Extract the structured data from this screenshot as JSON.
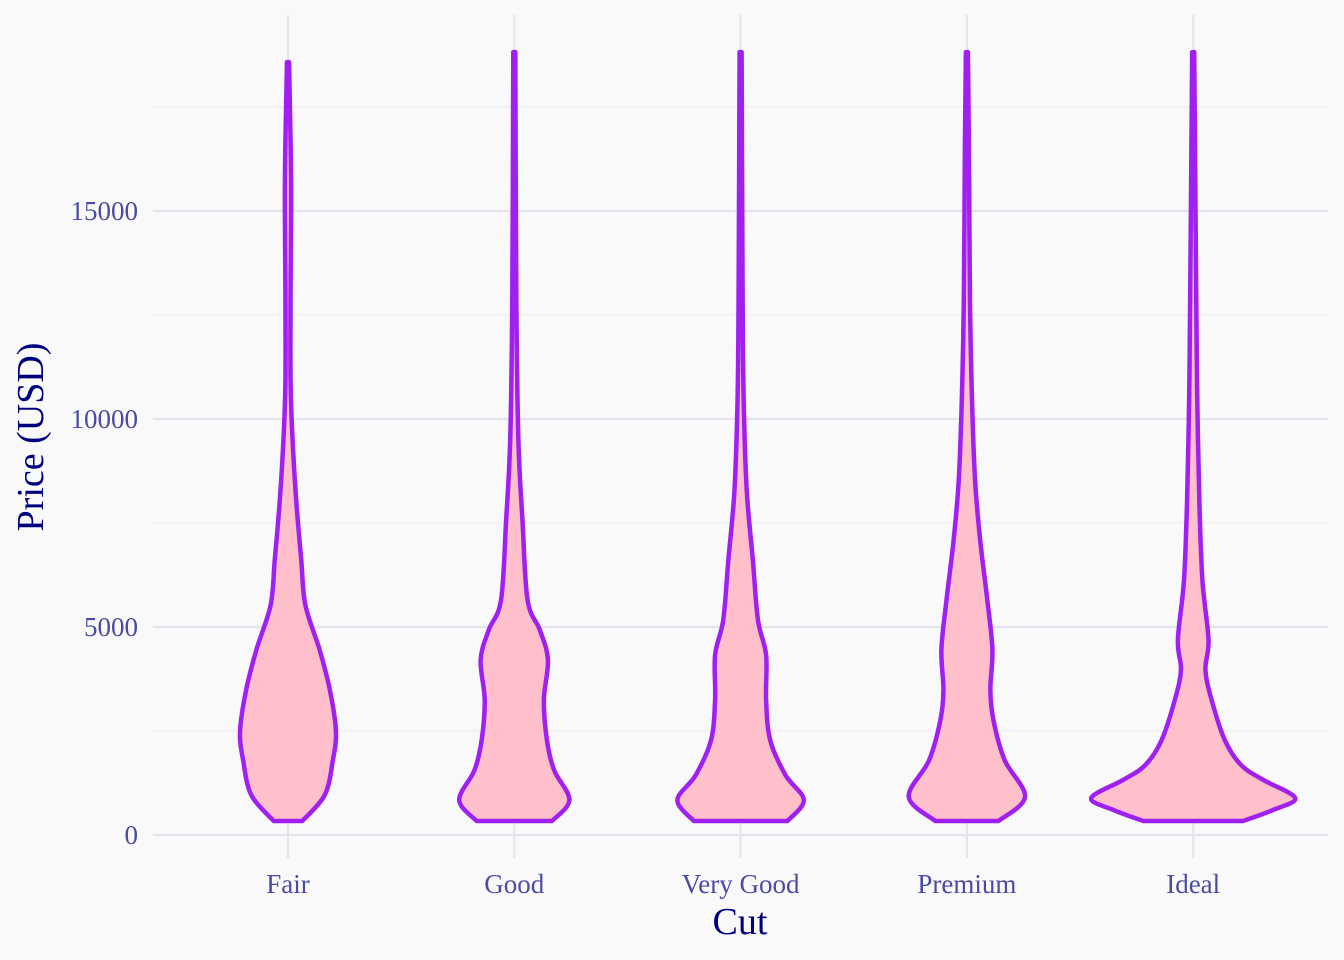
{
  "chart_data": {
    "type": "violin",
    "title": "",
    "xlabel": "Cut",
    "ylabel": "Price (USD)",
    "categories": [
      "Fair",
      "Good",
      "Very Good",
      "Premium",
      "Ideal"
    ],
    "yticks": [
      0,
      5000,
      10000,
      15000
    ],
    "ytick_labels": [
      "0",
      "5000",
      "10000",
      "15000"
    ],
    "ylim": [
      -500,
      19700
    ],
    "grid": true,
    "fill_color": "#FFC0CB",
    "line_color": "#A020F0",
    "violins": [
      {
        "category": "Fair",
        "profile": [
          [
            337,
            0.14
          ],
          [
            960,
            0.36
          ],
          [
            1800,
            0.44
          ],
          [
            2500,
            0.47
          ],
          [
            3490,
            0.41
          ],
          [
            4450,
            0.31
          ],
          [
            5530,
            0.17
          ],
          [
            6610,
            0.13
          ],
          [
            8050,
            0.08
          ],
          [
            9740,
            0.04
          ],
          [
            10940,
            0.025
          ],
          [
            12860,
            0.025
          ],
          [
            15750,
            0.03
          ],
          [
            18580,
            0.01
          ]
        ]
      },
      {
        "category": "Good",
        "profile": [
          [
            337,
            0.37
          ],
          [
            840,
            0.54
          ],
          [
            1560,
            0.39
          ],
          [
            2280,
            0.32
          ],
          [
            3250,
            0.29
          ],
          [
            4210,
            0.33
          ],
          [
            4930,
            0.25
          ],
          [
            5650,
            0.13
          ],
          [
            7570,
            0.08
          ],
          [
            9500,
            0.04
          ],
          [
            12860,
            0.02
          ],
          [
            18820,
            0.01
          ]
        ]
      },
      {
        "category": "Very Good",
        "profile": [
          [
            337,
            0.46
          ],
          [
            840,
            0.62
          ],
          [
            1440,
            0.44
          ],
          [
            2280,
            0.29
          ],
          [
            3250,
            0.25
          ],
          [
            4330,
            0.25
          ],
          [
            5170,
            0.17
          ],
          [
            6610,
            0.12
          ],
          [
            8290,
            0.06
          ],
          [
            10460,
            0.03
          ],
          [
            12860,
            0.02
          ],
          [
            18820,
            0.01
          ]
        ]
      },
      {
        "category": "Premium",
        "profile": [
          [
            337,
            0.31
          ],
          [
            915,
            0.57
          ],
          [
            1800,
            0.37
          ],
          [
            2760,
            0.26
          ],
          [
            3490,
            0.23
          ],
          [
            4450,
            0.25
          ],
          [
            5650,
            0.2
          ],
          [
            7090,
            0.13
          ],
          [
            8530,
            0.08
          ],
          [
            10460,
            0.05
          ],
          [
            12860,
            0.03
          ],
          [
            16470,
            0.02
          ],
          [
            18820,
            0.01
          ]
        ]
      },
      {
        "category": "Ideal",
        "profile": [
          [
            337,
            0.49
          ],
          [
            600,
            0.78
          ],
          [
            890,
            1.0
          ],
          [
            1320,
            0.69
          ],
          [
            1680,
            0.47
          ],
          [
            2280,
            0.31
          ],
          [
            3250,
            0.18
          ],
          [
            3970,
            0.12
          ],
          [
            4690,
            0.15
          ],
          [
            6130,
            0.09
          ],
          [
            8050,
            0.06
          ],
          [
            10460,
            0.04
          ],
          [
            12860,
            0.03
          ],
          [
            18820,
            0.01
          ]
        ]
      }
    ]
  }
}
